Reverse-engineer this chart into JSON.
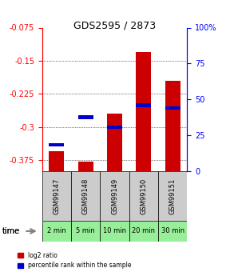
{
  "title": "GDS2595 / 2873",
  "samples": [
    "GSM99147",
    "GSM99148",
    "GSM99149",
    "GSM99150",
    "GSM99151"
  ],
  "time_labels": [
    "2 min",
    "5 min",
    "10 min",
    "20 min",
    "30 min"
  ],
  "log2_ratio": [
    -0.355,
    -0.378,
    -0.27,
    -0.13,
    -0.195
  ],
  "percentile_rank": [
    0.185,
    0.375,
    0.305,
    0.46,
    0.44
  ],
  "ylim_left": [
    -0.4,
    -0.075
  ],
  "ylim_right": [
    0,
    100
  ],
  "yticks_left": [
    -0.375,
    -0.3,
    -0.225,
    -0.15,
    -0.075
  ],
  "yticks_right": [
    0,
    25,
    50,
    75,
    100
  ],
  "ytick_labels_left": [
    "-0.375",
    "-0.3",
    "-0.225",
    "-0.15",
    "-0.075"
  ],
  "ytick_labels_right": [
    "0",
    "25",
    "50",
    "75",
    "100%"
  ],
  "bar_color_red": "#cc0000",
  "bar_color_blue": "#0000cc",
  "grid_color": "#000000",
  "bg_color": "#ffffff",
  "plot_bg": "#ffffff",
  "sample_bg": "#cccccc",
  "time_bg": "#99ee99",
  "legend_red": "log2 ratio",
  "legend_blue": "percentile rank within the sample",
  "bar_width": 0.35
}
